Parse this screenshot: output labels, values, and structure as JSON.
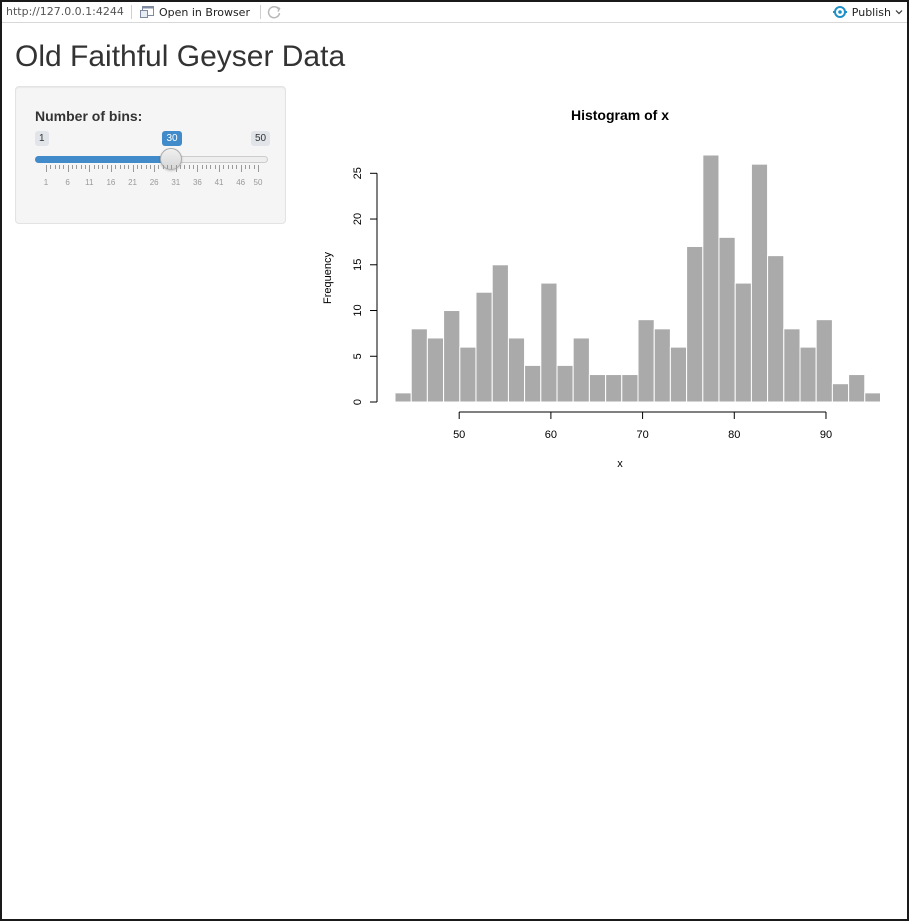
{
  "toolbar": {
    "url": "http://127.0.0.1:4244",
    "open_in_browser": "Open in Browser",
    "publish": "Publish",
    "colors": {
      "publish_icon": "#1e90c8"
    }
  },
  "app": {
    "title": "Old Faithful Geyser Data",
    "slider": {
      "label": "Number of bins:",
      "min": 1,
      "max": 50,
      "value": 30,
      "ticks": [
        "1",
        "6",
        "11",
        "16",
        "21",
        "26",
        "31",
        "36",
        "41",
        "46",
        "50"
      ],
      "colors": {
        "fill": "#428bca"
      }
    }
  },
  "chart_data": {
    "type": "bar",
    "title": "Histogram of x",
    "xlabel": "x",
    "ylabel": "Frequency",
    "bin_edges": [
      43,
      44.77,
      46.53,
      48.3,
      50.07,
      51.83,
      53.6,
      55.37,
      57.13,
      58.9,
      60.67,
      62.43,
      64.2,
      65.97,
      67.73,
      69.5,
      71.27,
      73.03,
      74.8,
      76.57,
      78.33,
      80.1,
      81.87,
      83.63,
      85.4,
      87.17,
      88.93,
      90.7,
      92.47,
      94.23,
      96
    ],
    "values": [
      1,
      8,
      7,
      10,
      6,
      12,
      15,
      7,
      4,
      13,
      4,
      7,
      3,
      3,
      3,
      9,
      8,
      6,
      17,
      27,
      18,
      13,
      26,
      16,
      8,
      6,
      9,
      2,
      3,
      1
    ],
    "xticks": [
      "50",
      "60",
      "70",
      "80",
      "90"
    ],
    "xtick_values": [
      50,
      60,
      70,
      80,
      90
    ],
    "yticks": [
      "0",
      "5",
      "10",
      "15",
      "20",
      "25"
    ],
    "ytick_values": [
      0,
      5,
      10,
      15,
      20,
      25
    ],
    "xlim": [
      43,
      96
    ],
    "ylim": [
      0,
      27
    ],
    "bar_color": "#aaaaaa",
    "bar_border": "#ffffff"
  }
}
